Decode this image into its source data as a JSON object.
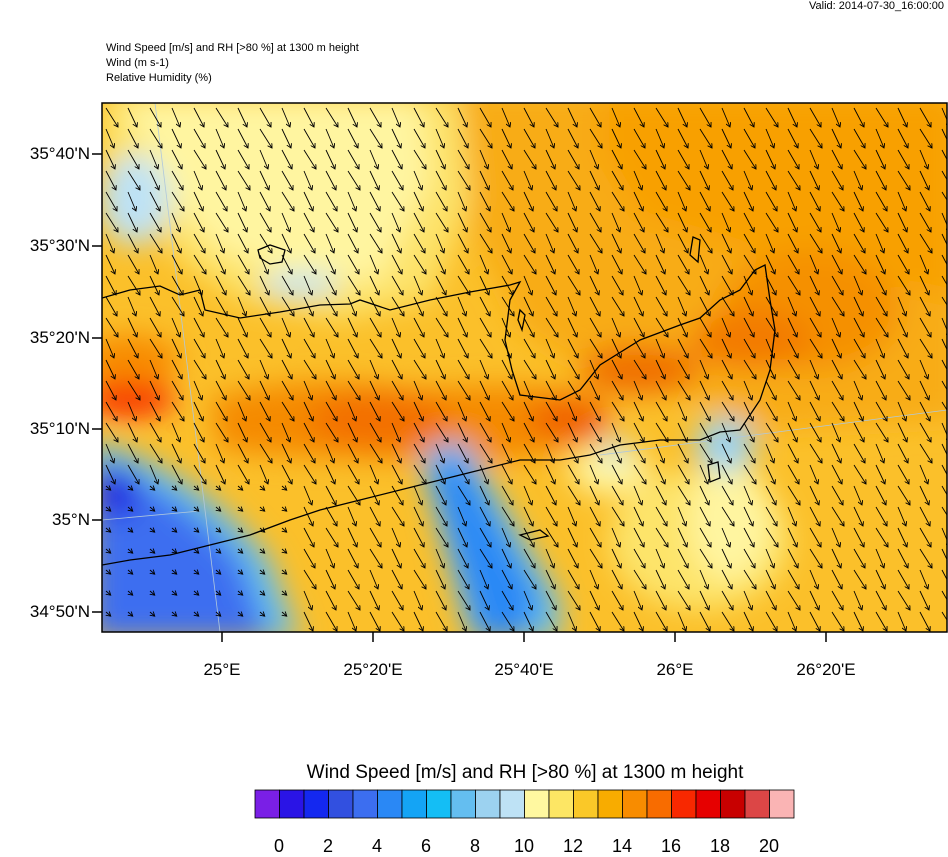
{
  "valid_label": "Valid: 2014-07-30_16:00:00",
  "titles": {
    "line1": "Wind Speed [m/s] and RH [>80 %] at 1300 m height",
    "line2": "Wind   (m s-1)",
    "line3": "Relative Humidity   (%)"
  },
  "lat_labels": [
    "35°40'N",
    "35°30'N",
    "35°20'N",
    "35°10'N",
    "35°N",
    "34°50'N"
  ],
  "lon_labels": [
    "25°E",
    "25°20'E",
    "25°40'E",
    "26°E",
    "26°20'E"
  ],
  "legend": {
    "title": "Wind Speed [m/s] and RH [>80 %] at 1300 m height",
    "tick_labels": [
      "0",
      "2",
      "4",
      "6",
      "8",
      "10",
      "12",
      "14",
      "16",
      "18",
      "20"
    ],
    "colors": [
      "#7a1fe6",
      "#2a14e6",
      "#1428f0",
      "#3250e0",
      "#3c6ef0",
      "#2a88f5",
      "#14a4f5",
      "#14bef5",
      "#64bef0",
      "#9cd2f0",
      "#bee2f5",
      "#fff8a0",
      "#fde664",
      "#fac828",
      "#f8ac00",
      "#f88c00",
      "#f86c00",
      "#f82800",
      "#e60000",
      "#c80000",
      "#dc4646",
      "#fab4b4"
    ]
  }
}
